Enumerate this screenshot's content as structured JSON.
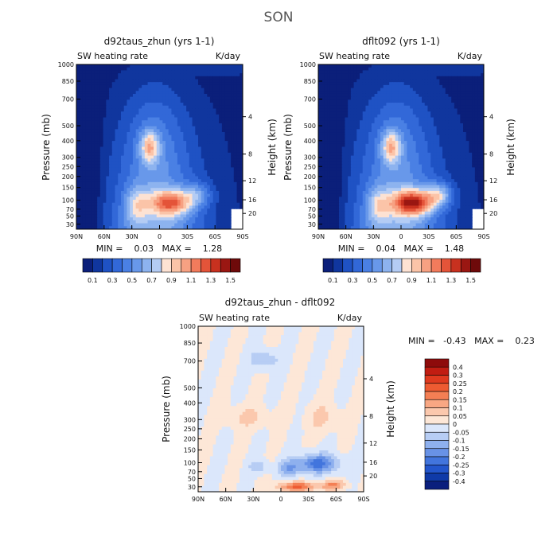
{
  "figure_title": "SON",
  "chart_data": [
    {
      "type": "heatmap",
      "title": "d92taus_zhun (yrs 1-1)",
      "left_subtitle": "SW heating rate",
      "right_subtitle": "K/day",
      "ylabel": "Pressure (mb)",
      "ylabel_right": "Height (km)",
      "x_ticks": [
        "90N",
        "60N",
        "30N",
        "0",
        "30S",
        "60S",
        "90S"
      ],
      "y_ticks": [
        "30",
        "50",
        "70",
        "100",
        "150",
        "200",
        "250",
        "300",
        "400",
        "500",
        "700",
        "850",
        "1000"
      ],
      "y_right_ticks": [
        "20",
        "16",
        "12",
        "8",
        "4"
      ],
      "min_max_text": "MIN =    0.03   MAX =    1.28",
      "colorbar": {
        "orientation": "horizontal",
        "labels": [
          "0.1",
          "0.3",
          "0.5",
          "0.7",
          "0.9",
          "1.1",
          "1.3",
          "1.5"
        ],
        "levels": [
          0.1,
          0.2,
          0.3,
          0.4,
          0.5,
          0.6,
          0.7,
          0.8,
          0.9,
          1.0,
          1.1,
          1.2,
          1.3,
          1.4,
          1.5
        ]
      }
    },
    {
      "type": "heatmap",
      "title": "dflt092 (yrs 1-1)",
      "left_subtitle": "SW heating rate",
      "right_subtitle": "K/day",
      "ylabel": "Pressure (mb)",
      "ylabel_right": "Height (km)",
      "x_ticks": [
        "90N",
        "60N",
        "30N",
        "0",
        "30S",
        "60S",
        "90S"
      ],
      "y_ticks": [
        "30",
        "50",
        "70",
        "100",
        "150",
        "200",
        "250",
        "300",
        "400",
        "500",
        "700",
        "850",
        "1000"
      ],
      "y_right_ticks": [
        "20",
        "16",
        "12",
        "8",
        "4"
      ],
      "min_max_text": "MIN =    0.04   MAX =    1.48",
      "colorbar": {
        "orientation": "horizontal",
        "labels": [
          "0.1",
          "0.3",
          "0.5",
          "0.7",
          "0.9",
          "1.1",
          "1.3",
          "1.5"
        ],
        "levels": [
          0.1,
          0.2,
          0.3,
          0.4,
          0.5,
          0.6,
          0.7,
          0.8,
          0.9,
          1.0,
          1.1,
          1.2,
          1.3,
          1.4,
          1.5
        ]
      }
    },
    {
      "type": "heatmap",
      "title": "d92taus_zhun - dflt092",
      "left_subtitle": "SW heating rate",
      "right_subtitle": "K/day",
      "ylabel": "Pressure (mb)",
      "ylabel_right": "Height (km)",
      "x_ticks": [
        "90N",
        "60N",
        "30N",
        "0",
        "30S",
        "60S",
        "90S"
      ],
      "y_ticks": [
        "30",
        "50",
        "70",
        "100",
        "150",
        "200",
        "250",
        "300",
        "400",
        "500",
        "700",
        "850",
        "1000"
      ],
      "y_right_ticks": [
        "20",
        "16",
        "12",
        "8",
        "4"
      ],
      "min_max_text": "MIN =   -0.43   MAX =    0.23",
      "colorbar": {
        "orientation": "vertical",
        "labels": [
          "0.4",
          "0.3",
          "0.25",
          "0.2",
          "0.15",
          "0.1",
          "0.05",
          "0",
          "-0.05",
          "-0.1",
          "-0.15",
          "-0.2",
          "-0.25",
          "-0.3",
          "-0.4"
        ],
        "levels": [
          0.4,
          0.3,
          0.25,
          0.2,
          0.15,
          0.1,
          0.05,
          0,
          -0.05,
          -0.1,
          -0.15,
          -0.2,
          -0.25,
          -0.3,
          -0.4
        ]
      }
    }
  ],
  "colors": {
    "heating_scale": [
      "#0b1f7a",
      "#10369e",
      "#1f52c4",
      "#3268d8",
      "#4a80e4",
      "#6898ea",
      "#8db3ef",
      "#b4ccf4",
      "#fde2d3",
      "#fbc4a8",
      "#f7a182",
      "#f27b5c",
      "#e45439",
      "#c8311f",
      "#9a1712",
      "#6e0a0a"
    ],
    "diff_scale": [
      "#8e0b0b",
      "#c11d12",
      "#df3a1f",
      "#ee5b32",
      "#f47f54",
      "#f8a783",
      "#fbc8ad",
      "#fde7d7",
      "#dbe7fb",
      "#b7cdf4",
      "#8eb0ee",
      "#6892e6",
      "#4275dd",
      "#2356cc",
      "#0f3aa8",
      "#0a1f7d"
    ]
  }
}
